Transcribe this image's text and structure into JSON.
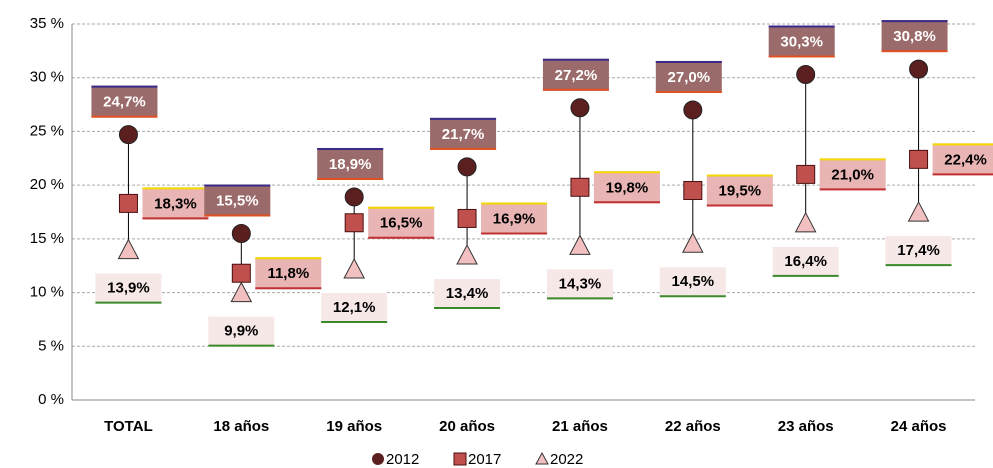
{
  "chart_data": {
    "type": "dot",
    "categories": [
      "TOTAL",
      "18 años",
      "19 años",
      "20 años",
      "21 años",
      "22 años",
      "23 años",
      "24 años"
    ],
    "series": [
      {
        "name": "2012",
        "color": "#5c1f1f",
        "marker": "circle",
        "values": [
          24.7,
          15.5,
          18.9,
          21.7,
          27.2,
          27.0,
          30.3,
          30.8
        ],
        "value_labels": [
          "24,7%",
          "15,5%",
          "18,9%",
          "21,7%",
          "27,2%",
          "27,0%",
          "30,3%",
          "30,8%"
        ]
      },
      {
        "name": "2017",
        "color": "#c0504d",
        "marker": "square",
        "values": [
          18.3,
          11.8,
          16.5,
          16.9,
          19.8,
          19.5,
          21.0,
          22.4
        ],
        "value_labels": [
          "18,3%",
          "11,8%",
          "16,5%",
          "16,9%",
          "19,8%",
          "19,5%",
          "21,0%",
          "22,4%"
        ]
      },
      {
        "name": "2022",
        "color": "#f2c0c0",
        "marker": "triangle",
        "values": [
          13.9,
          9.9,
          12.1,
          13.4,
          14.3,
          14.5,
          16.4,
          17.4
        ],
        "value_labels": [
          "13,9%",
          "9,9%",
          "12,1%",
          "13,4%",
          "14,3%",
          "14,5%",
          "16,4%",
          "17,4%"
        ]
      }
    ],
    "ylim": [
      0,
      35
    ],
    "yticks": [
      {
        "value": 0,
        "label": "0 %"
      },
      {
        "value": 5,
        "label": "5 %"
      },
      {
        "value": 10,
        "label": "10 %"
      },
      {
        "value": 15,
        "label": "15 %"
      },
      {
        "value": 20,
        "label": "20 %"
      },
      {
        "value": 25,
        "label": "25 %"
      },
      {
        "value": 30,
        "label": "30 %"
      },
      {
        "value": 35,
        "label": "35 %"
      }
    ],
    "grid": true,
    "legend": "bottom"
  }
}
